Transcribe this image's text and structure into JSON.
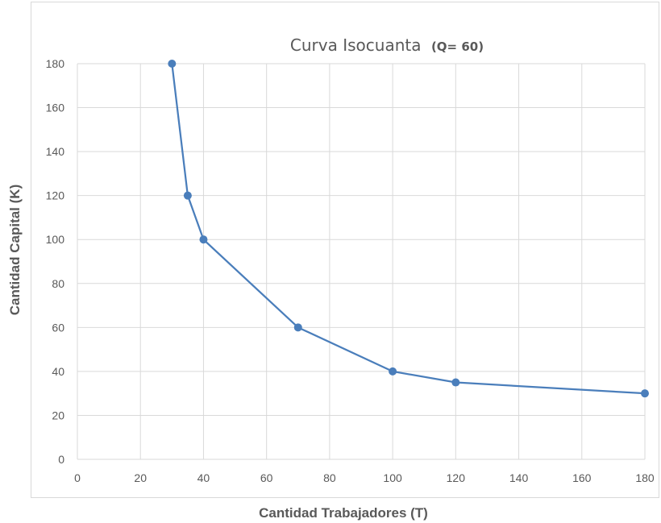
{
  "chart_data": {
    "type": "line",
    "title": "Curva Isocuanta",
    "subtitle": "(Q= 60)",
    "xlabel": "Cantidad Trabajadores (T)",
    "ylabel": "Cantidad Capital (K)",
    "xlim": [
      0,
      180
    ],
    "ylim": [
      0,
      180
    ],
    "xticks": [
      0,
      20,
      40,
      60,
      80,
      100,
      120,
      140,
      160,
      180
    ],
    "yticks": [
      0,
      20,
      40,
      60,
      80,
      100,
      120,
      140,
      160,
      180
    ],
    "grid": true,
    "markers": true,
    "series": [
      {
        "x": [
          30,
          35,
          40,
          70,
          100,
          120,
          180
        ],
        "y": [
          180,
          120,
          100,
          60,
          40,
          35,
          30
        ]
      }
    ],
    "colors": {
      "line": "#4a7ebb",
      "marker": "#4a7ebb",
      "grid": "#d9d9d9",
      "text": "#595959"
    }
  }
}
